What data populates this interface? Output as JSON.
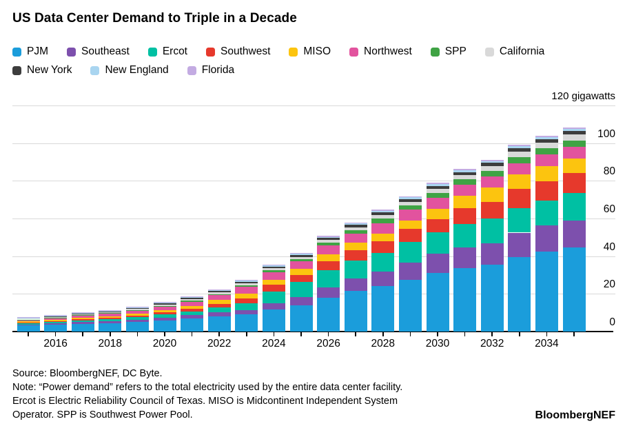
{
  "title": "US Data Center Demand to Triple in a Decade",
  "chart_data": {
    "type": "bar",
    "stacked": true,
    "title": "US Data Center Demand to Triple in a Decade",
    "unit_label": "120 gigawatts",
    "ylabel": "gigawatts",
    "ylim": [
      0,
      120
    ],
    "y_tick_step": 20,
    "y_tick_labels": [
      "0",
      "20",
      "40",
      "60",
      "80",
      "100"
    ],
    "grid": true,
    "legend_position": "top",
    "categories": [
      2015,
      2016,
      2017,
      2018,
      2019,
      2020,
      2021,
      2022,
      2023,
      2024,
      2025,
      2026,
      2027,
      2028,
      2029,
      2030,
      2031,
      2032,
      2033,
      2034,
      2035
    ],
    "x_tick_labels": [
      2016,
      2018,
      2020,
      2022,
      2024,
      2026,
      2028,
      2030,
      2032,
      2034
    ],
    "series": [
      {
        "name": "PJM",
        "color": "#1b9ddb",
        "values": [
          3.2,
          3.6,
          4.1,
          4.5,
          5.1,
          6.0,
          7.0,
          8.2,
          9.0,
          11.6,
          14.0,
          18.0,
          21.5,
          24.2,
          27.6,
          31.0,
          33.5,
          35.5,
          39.5,
          42.5,
          44.5
        ]
      },
      {
        "name": "Southeast",
        "color": "#7d50ad",
        "values": [
          0.6,
          0.7,
          0.85,
          0.95,
          1.1,
          1.35,
          1.6,
          2.0,
          2.3,
          3.3,
          4.2,
          5.3,
          6.5,
          7.6,
          9.1,
          10.5,
          11.0,
          11.5,
          13.0,
          14.0,
          14.5
        ]
      },
      {
        "name": "Ercot",
        "color": "#00c0a3",
        "values": [
          0.6,
          0.75,
          0.95,
          1.1,
          1.35,
          1.7,
          2.1,
          2.7,
          3.6,
          6.5,
          8.0,
          9.2,
          9.6,
          9.8,
          10.9,
          11.3,
          12.5,
          13.0,
          13.1,
          13.1,
          14.5
        ]
      },
      {
        "name": "Southwest",
        "color": "#e6392c",
        "values": [
          0.5,
          0.55,
          0.65,
          0.75,
          0.9,
          1.1,
          1.4,
          1.8,
          2.5,
          3.3,
          3.8,
          4.8,
          5.5,
          6.2,
          6.8,
          7.0,
          8.4,
          8.8,
          10.0,
          10.3,
          10.5
        ]
      },
      {
        "name": "MISO",
        "color": "#fcc40f",
        "values": [
          0.6,
          0.65,
          0.8,
          0.9,
          1.1,
          1.3,
          1.6,
          2.0,
          2.9,
          2.9,
          3.2,
          3.8,
          4.0,
          4.3,
          4.4,
          5.5,
          6.5,
          7.5,
          7.8,
          8.0,
          8.0
        ]
      },
      {
        "name": "Northwest",
        "color": "#e2539e",
        "values": [
          0.7,
          0.8,
          1.0,
          1.15,
          1.4,
          1.7,
          2.1,
          2.6,
          3.5,
          4.0,
          4.2,
          4.7,
          5.0,
          5.5,
          5.8,
          5.8,
          5.9,
          6.0,
          6.0,
          6.0,
          6.0
        ]
      },
      {
        "name": "SPP",
        "color": "#3fa344",
        "values": [
          0.2,
          0.25,
          0.3,
          0.35,
          0.4,
          0.45,
          0.5,
          0.6,
          0.8,
          0.9,
          1.0,
          1.3,
          1.6,
          2.5,
          2.5,
          2.5,
          2.9,
          2.9,
          3.3,
          3.3,
          3.5
        ]
      },
      {
        "name": "California",
        "color": "#d9d9d9",
        "values": [
          0.4,
          0.45,
          0.5,
          0.55,
          0.6,
          0.7,
          0.8,
          0.9,
          1.0,
          1.1,
          1.2,
          1.4,
          1.6,
          1.8,
          1.8,
          2.2,
          2.3,
          2.5,
          2.8,
          2.9,
          3.0
        ]
      },
      {
        "name": "New York",
        "color": "#3d3d3d",
        "values": [
          0.4,
          0.45,
          0.5,
          0.5,
          0.55,
          0.6,
          0.65,
          0.7,
          0.8,
          0.9,
          1.0,
          1.1,
          1.3,
          1.4,
          1.5,
          1.5,
          1.6,
          1.8,
          1.9,
          2.0,
          2.0
        ]
      },
      {
        "name": "New England",
        "color": "#a9d5f0",
        "values": [
          0.2,
          0.25,
          0.3,
          0.3,
          0.3,
          0.35,
          0.4,
          0.4,
          0.5,
          0.5,
          0.6,
          0.7,
          0.7,
          0.8,
          0.8,
          0.9,
          0.9,
          1.0,
          1.0,
          1.0,
          1.0
        ]
      },
      {
        "name": "Florida",
        "color": "#c3abe2",
        "values": [
          0.2,
          0.25,
          0.25,
          0.25,
          0.3,
          0.35,
          0.35,
          0.4,
          0.4,
          0.5,
          0.5,
          0.5,
          0.6,
          0.6,
          0.6,
          0.7,
          0.7,
          0.7,
          0.7,
          0.8,
          0.8
        ]
      }
    ]
  },
  "footer": {
    "lines": [
      "Source: BloombergNEF, DC Byte.",
      "Note: “Power demand” refers to the total electricity used by the entire data center facility.",
      "Ercot is Electric Reliability Council of Texas. MISO is Midcontinent Independent System",
      "Operator. SPP is Southwest Power Pool."
    ]
  },
  "brand": "BloombergNEF"
}
